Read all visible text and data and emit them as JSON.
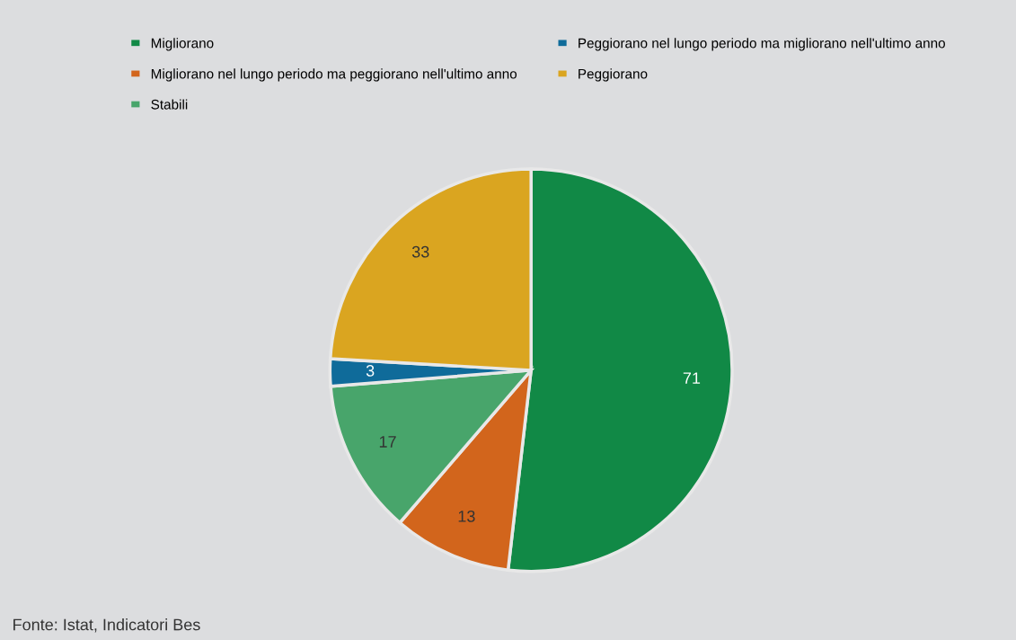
{
  "chart_data": {
    "type": "pie",
    "categories": [
      "Migliorano",
      "Migliorano nel lungo periodo ma peggiorano nell'ultimo anno",
      "Stabili",
      "Peggiorano nel lungo periodo ma migliorano nell'ultimo anno",
      "Peggiorano"
    ],
    "values": [
      71,
      13,
      17,
      3,
      33
    ],
    "colors": [
      "#118946",
      "#d2651c",
      "#48a56b",
      "#0f6b9a",
      "#daa520"
    ],
    "data_labels": true,
    "legend": "top",
    "annotations": [
      "Fonte: Istat, Indicatori Bes"
    ]
  }
}
